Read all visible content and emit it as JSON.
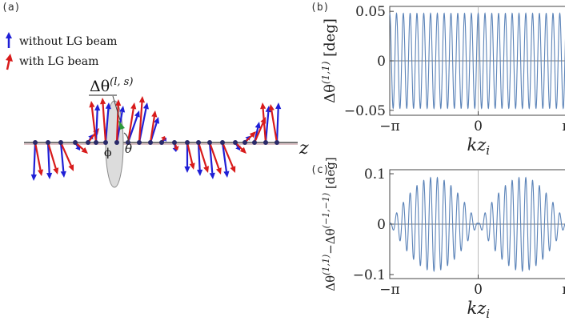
{
  "figure": {
    "panel_a": {
      "label": "(a)",
      "legend": [
        {
          "text": "without LG beam",
          "color": "#1f1fd6"
        },
        {
          "text": "with LG beam",
          "color": "#d81b1b"
        }
      ],
      "annotation": "Δθ",
      "annotation_sup": "(l, s)",
      "phi": "ϕ",
      "theta": "θ",
      "z_axis": "z"
    },
    "panel_b": {
      "label": "(b)"
    },
    "panel_c": {
      "label": "(c)"
    }
  },
  "chart_data": [
    {
      "type": "line",
      "panel": "(b)",
      "xlabel": "kz",
      "xlabel_sub": "i",
      "ylabel": "Δθ",
      "ylabel_sup": "(1,1)",
      "ylabel_unit": " [deg]",
      "xlim": [
        -3.1416,
        3.1416
      ],
      "ylim": [
        -0.055,
        0.055
      ],
      "xticks": [
        {
          "value": -3.1416,
          "label": "−π"
        },
        {
          "value": 0,
          "label": "0"
        },
        {
          "value": 3.1416,
          "label": "π"
        }
      ],
      "yticks": [
        {
          "value": -0.05,
          "label": "−0.05"
        },
        {
          "value": 0,
          "label": "0"
        },
        {
          "value": 0.05,
          "label": "0.05"
        }
      ],
      "series": [
        {
          "amplitude": 0.048,
          "cycles": 26,
          "color": "#5b83b8"
        }
      ]
    },
    {
      "type": "line",
      "panel": "(c)",
      "xlabel": "kz",
      "xlabel_sub": "i",
      "ylabel_parts": [
        "Δθ",
        "(1,1)",
        "−Δθ",
        "(−1,−1)",
        " [deg]"
      ],
      "xlim": [
        -3.1416,
        3.1416
      ],
      "ylim": [
        -0.108,
        0.108
      ],
      "xticks": [
        {
          "value": -3.1416,
          "label": "−π"
        },
        {
          "value": 0,
          "label": "0"
        },
        {
          "value": 3.1416,
          "label": "π"
        }
      ],
      "yticks": [
        {
          "value": -0.1,
          "label": "−0.1"
        },
        {
          "value": 0,
          "label": "0"
        },
        {
          "value": 0.1,
          "label": "0.1"
        }
      ],
      "series": [
        {
          "amplitude": 0.093,
          "cycles": 26,
          "envelope": "abs-sin",
          "color": "#5b83b8"
        }
      ]
    }
  ]
}
